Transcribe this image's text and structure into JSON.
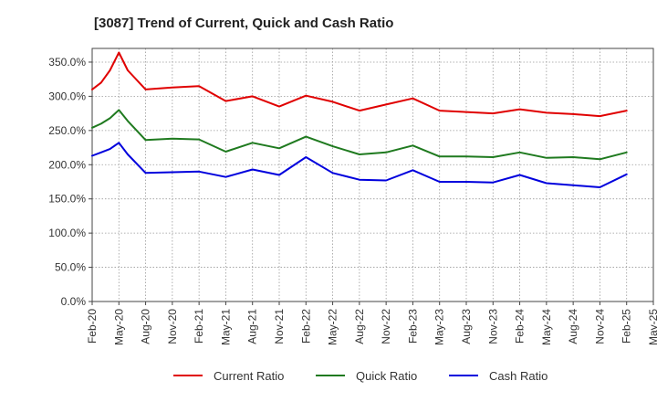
{
  "chart_data": {
    "type": "line",
    "title": "[3087]  Trend of Current, Quick and Cash Ratio",
    "xlabel": "",
    "ylabel": "",
    "ylim": [
      0,
      370
    ],
    "y_ticks": [
      0,
      50,
      100,
      150,
      200,
      250,
      300,
      350
    ],
    "y_tick_labels": [
      "0.0%",
      "50.0%",
      "100.0%",
      "150.0%",
      "200.0%",
      "250.0%",
      "300.0%",
      "350.0%"
    ],
    "x_tick_labels": [
      "Feb-20",
      "May-20",
      "Aug-20",
      "Nov-20",
      "Feb-21",
      "May-21",
      "Aug-21",
      "Nov-21",
      "Feb-22",
      "May-22",
      "Aug-22",
      "Nov-22",
      "Feb-23",
      "May-23",
      "Aug-23",
      "Nov-23",
      "Feb-24",
      "May-24",
      "Aug-24",
      "Nov-24",
      "Feb-25",
      "May-25"
    ],
    "x_months": [
      0,
      3,
      6,
      9,
      12,
      15,
      18,
      21,
      24,
      27,
      30,
      33,
      36,
      39,
      42,
      45,
      48,
      51,
      54,
      57,
      60,
      63
    ],
    "x_range_months": [
      0,
      63
    ],
    "grid": true,
    "legend_position": "bottom",
    "series": [
      {
        "name": "Current Ratio",
        "color": "#e00000",
        "x_months": [
          0,
          1,
          2,
          3,
          4,
          6,
          9,
          12,
          15,
          18,
          21,
          24,
          27,
          30,
          33,
          36,
          39,
          42,
          45,
          48,
          51,
          54,
          57,
          60
        ],
        "values": [
          310,
          320,
          338,
          364,
          338,
          310,
          313,
          315,
          293,
          300,
          285,
          301,
          292,
          279,
          288,
          297,
          279,
          277,
          275,
          281,
          276,
          274,
          271,
          279
        ]
      },
      {
        "name": "Quick Ratio",
        "color": "#1f7a1f",
        "x_months": [
          0,
          1,
          2,
          3,
          4,
          6,
          9,
          12,
          15,
          18,
          21,
          24,
          27,
          30,
          33,
          36,
          39,
          42,
          45,
          48,
          51,
          54,
          57,
          60
        ],
        "values": [
          254,
          260,
          268,
          280,
          264,
          236,
          238,
          237,
          219,
          232,
          224,
          241,
          227,
          215,
          218,
          228,
          212,
          212,
          211,
          218,
          210,
          211,
          208,
          218
        ]
      },
      {
        "name": "Cash Ratio",
        "color": "#0000dd",
        "x_months": [
          0,
          1,
          2,
          3,
          4,
          6,
          9,
          12,
          15,
          18,
          21,
          24,
          27,
          30,
          33,
          36,
          39,
          42,
          45,
          48,
          51,
          54,
          57,
          60
        ],
        "values": [
          213,
          218,
          223,
          232,
          215,
          188,
          189,
          190,
          182,
          193,
          185,
          211,
          188,
          178,
          177,
          192,
          175,
          175,
          174,
          185,
          173,
          170,
          167,
          186
        ]
      }
    ]
  }
}
